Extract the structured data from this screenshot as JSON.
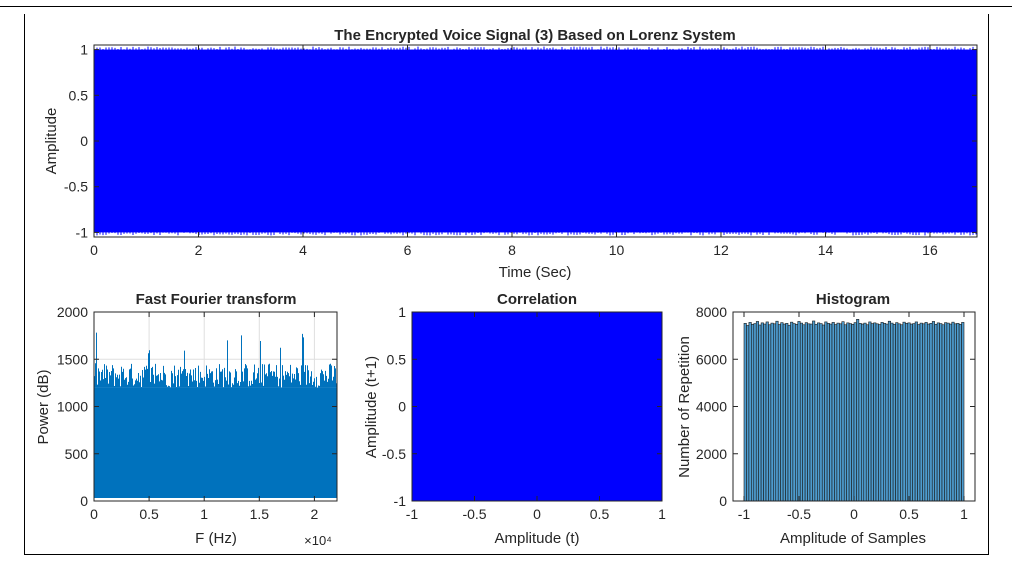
{
  "colors": {
    "signal": "#0000ff",
    "fft": "#0072bd",
    "correlation": "#0000ff",
    "histogram_face": "#4d9ccf",
    "histogram_edge": "#1a1a1a",
    "axis": "#262626",
    "grid": "#dfdfdf"
  },
  "chart_data": [
    {
      "id": "signal",
      "type": "line",
      "title": "The Encrypted Voice Signal (3) Based on Lorenz System",
      "xlabel": "Time (Sec)",
      "ylabel": "Amplitude",
      "xlim": [
        0,
        16.9
      ],
      "ylim": [
        -1.05,
        1.05
      ],
      "xticks": [
        0,
        2,
        4,
        6,
        8,
        10,
        12,
        14,
        16
      ],
      "xtick_labels": [
        "0",
        "2",
        "4",
        "6",
        "8",
        "10",
        "12",
        "14",
        "16"
      ],
      "yticks": [
        -1,
        -0.5,
        0,
        0.5,
        1
      ],
      "ytick_labels": [
        "-1",
        "-0.5",
        "0",
        "0.5",
        "1"
      ],
      "envelope": {
        "min": -1,
        "max": 1
      },
      "grid": false
    },
    {
      "id": "fft",
      "type": "area",
      "title": "Fast Fourier transform",
      "xlabel": "F (Hz)",
      "ylabel": "Power (dB)",
      "x_exponent_label": "×10⁴",
      "xlim": [
        0,
        22050
      ],
      "ylim": [
        0,
        2000
      ],
      "xticks": [
        0,
        5000,
        10000,
        15000,
        20000
      ],
      "xtick_labels": [
        "0",
        "0.5",
        "1",
        "1.5",
        "2"
      ],
      "yticks": [
        0,
        500,
        1000,
        1500,
        2000
      ],
      "ytick_labels": [
        "0",
        "500",
        "1000",
        "1500",
        "2000"
      ],
      "dense_band_top": 1200,
      "peak_power": 1800,
      "grid": true
    },
    {
      "id": "correlation",
      "type": "scatter",
      "title": "Correlation",
      "xlabel": "Amplitude (t)",
      "ylabel": "Amplitude (t+1)",
      "xlim": [
        -1,
        1
      ],
      "ylim": [
        -1,
        1
      ],
      "xticks": [
        -1,
        -0.5,
        0,
        0.5,
        1
      ],
      "xtick_labels": [
        "-1",
        "-0.5",
        "0",
        "0.5",
        "1"
      ],
      "yticks": [
        -1,
        -0.5,
        0,
        0.5,
        1
      ],
      "ytick_labels": [
        "-1",
        "-0.5",
        "0",
        "0.5",
        "1"
      ],
      "fill_region": {
        "x": [
          -1,
          1
        ],
        "y": [
          -1,
          1
        ]
      },
      "grid": false
    },
    {
      "id": "histogram",
      "type": "bar",
      "title": "Histogram",
      "xlabel": "Amplitude of Samples",
      "ylabel": "Number of Repetition",
      "xlim": [
        -1.1,
        1.1
      ],
      "ylim": [
        0,
        8000
      ],
      "xticks": [
        -1,
        -0.5,
        0,
        0.5,
        1
      ],
      "xtick_labels": [
        "-1",
        "-0.5",
        "0",
        "0.5",
        "1"
      ],
      "yticks": [
        0,
        2000,
        4000,
        6000,
        8000
      ],
      "ytick_labels": [
        "0",
        "2000",
        "4000",
        "6000",
        "8000"
      ],
      "bin_range": [
        -1,
        1
      ],
      "values": [
        7520,
        7430,
        7560,
        7480,
        7510,
        7600,
        7450,
        7540,
        7490,
        7580,
        7460,
        7530,
        7500,
        7610,
        7470,
        7550,
        7490,
        7520,
        7440,
        7570,
        7510,
        7480,
        7600,
        7530,
        7460,
        7550,
        7500,
        7490,
        7620,
        7480,
        7540,
        7510,
        7450,
        7580,
        7520,
        7490,
        7560,
        7470,
        7530,
        7500,
        7590,
        7460,
        7540,
        7510,
        7480,
        7550,
        7690,
        7520,
        7490,
        7530,
        7460,
        7580,
        7510,
        7540,
        7500,
        7470,
        7560,
        7520,
        7490,
        7610,
        7530,
        7480,
        7550,
        7500,
        7460,
        7570,
        7520,
        7540,
        7490,
        7510,
        7580,
        7470,
        7530,
        7500,
        7560,
        7490,
        7520,
        7600,
        7480,
        7540,
        7510,
        7460,
        7550,
        7530,
        7490,
        7570,
        7500,
        7520,
        7480,
        7560
      ],
      "grid": false
    }
  ]
}
